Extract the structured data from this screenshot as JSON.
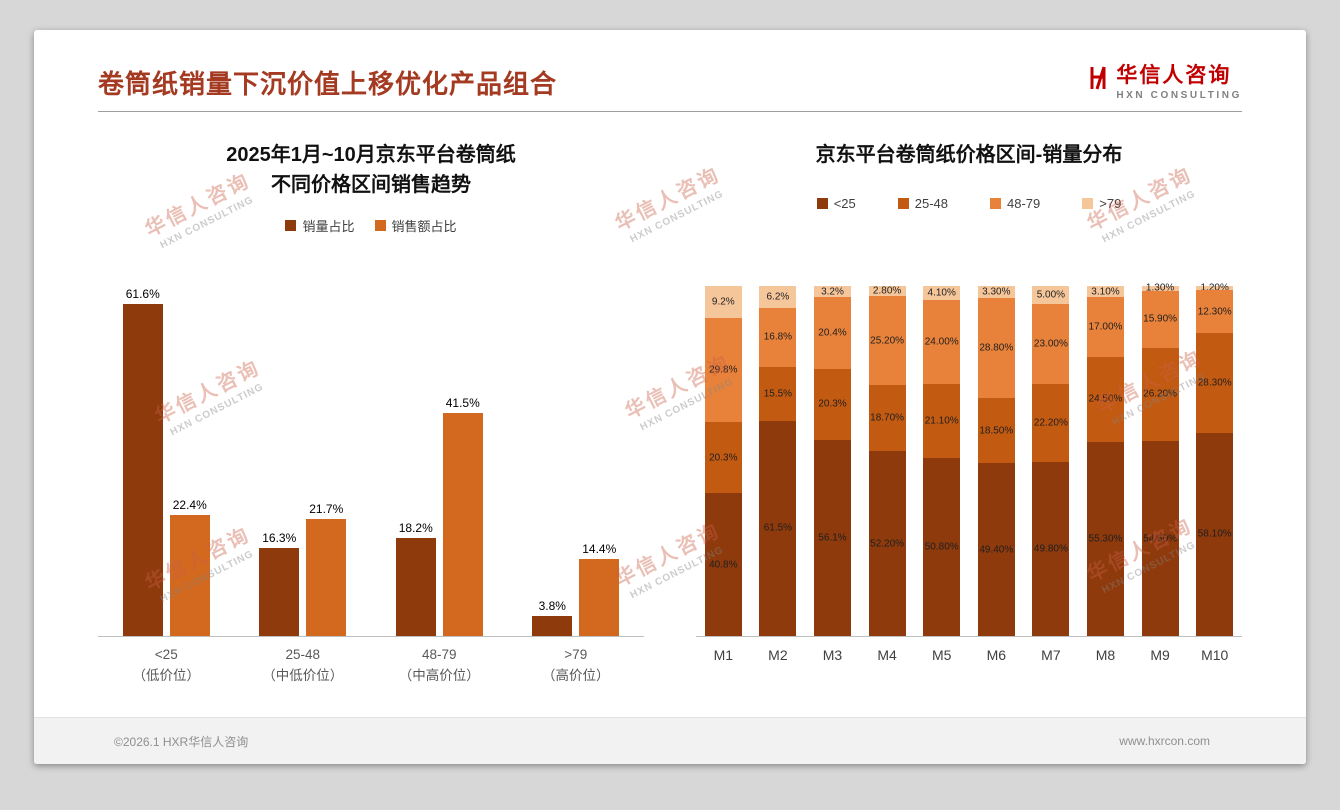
{
  "header": {
    "title": "卷筒纸销量下沉价值上移优化产品组合"
  },
  "logo": {
    "name": "华信人咨询",
    "subtitle": "HXN CONSULTING"
  },
  "watermark": {
    "line1": "华信人咨询",
    "line2": "HXN CONSULTING"
  },
  "footer": {
    "copyright": "©2026.1 HXR华信人咨询",
    "website": "www.hxrcon.com"
  },
  "colors": {
    "header_accent": "#A43A21",
    "logo_red": "#C00000",
    "dark_brown": "#8E3A0C",
    "orange": "#D2691E",
    "stack_25_48": "#C35A11",
    "stack_48_79": "#E8823A",
    "stack_gt79": "#F6C69B"
  },
  "chart_data": [
    {
      "type": "bar",
      "title": "2025年1月~10月京东平台卷筒纸不同价格区间销售趋势",
      "title_lines": [
        "2025年1月~10月京东平台卷筒纸",
        "不同价格区间销售趋势"
      ],
      "categories": [
        "<25",
        "25-48",
        "48-79",
        ">79"
      ],
      "category_sublabels": [
        "（低价位）",
        "（中低价位）",
        "（中高价位）",
        "（高价位）"
      ],
      "series": [
        {
          "name": "销量占比",
          "color": "#8E3A0C",
          "values": [
            61.6,
            16.3,
            18.2,
            3.8
          ],
          "labels": [
            "61.6%",
            "16.3%",
            "18.2%",
            "3.8%"
          ]
        },
        {
          "name": "销售额占比",
          "color": "#D2691E",
          "values": [
            22.4,
            21.7,
            41.5,
            14.4
          ],
          "labels": [
            "22.4%",
            "21.7%",
            "41.5%",
            "14.4%"
          ]
        }
      ],
      "xlabel": "",
      "ylabel": "",
      "ylim": [
        0,
        65
      ],
      "grid": false,
      "legend_position": "top"
    },
    {
      "type": "stacked-bar",
      "title": "京东平台卷筒纸价格区间-销量分布",
      "categories": [
        "M1",
        "M2",
        "M3",
        "M4",
        "M5",
        "M6",
        "M7",
        "M8",
        "M9",
        "M10"
      ],
      "series": [
        {
          "name": "<25",
          "color": "#8E3A0C",
          "values": [
            40.8,
            61.5,
            56.1,
            52.2,
            50.8,
            49.4,
            49.8,
            55.3,
            54.6,
            58.1
          ],
          "labels": [
            "40.8%",
            "61.5%",
            "56.1%",
            "52.20%",
            "50.80%",
            "49.40%",
            "49.80%",
            "55.30%",
            "54.60%",
            "58.10%"
          ]
        },
        {
          "name": "25-48",
          "color": "#C35A11",
          "values": [
            20.3,
            15.5,
            20.3,
            18.7,
            21.1,
            18.5,
            22.2,
            24.5,
            26.2,
            28.3
          ],
          "labels": [
            "20.3%",
            "15.5%",
            "20.3%",
            "18.70%",
            "21.10%",
            "18.50%",
            "22.20%",
            "24.50%",
            "26.20%",
            "28.30%"
          ]
        },
        {
          "name": "48-79",
          "color": "#E8823A",
          "values": [
            29.8,
            16.8,
            20.4,
            25.2,
            24.0,
            28.8,
            23.0,
            17.0,
            15.9,
            12.3
          ],
          "labels": [
            "29.8%",
            "16.8%",
            "20.4%",
            "25.20%",
            "24.00%",
            "28.80%",
            "23.00%",
            "17.00%",
            "15.90%",
            "12.30%"
          ]
        },
        {
          "name": ">79",
          "color": "#F6C69B",
          "values": [
            9.2,
            6.2,
            3.2,
            2.8,
            4.1,
            3.3,
            5.0,
            3.1,
            1.3,
            1.2
          ],
          "labels": [
            "9.2%",
            "6.2%",
            "3.2%",
            "2.80%",
            "4.10%",
            "3.30%",
            "5.00%",
            "3.10%",
            "1.30%",
            "1.20%"
          ]
        }
      ],
      "xlabel": "",
      "ylabel": "",
      "ylim": [
        0,
        100
      ],
      "grid": false,
      "legend_position": "top"
    }
  ]
}
